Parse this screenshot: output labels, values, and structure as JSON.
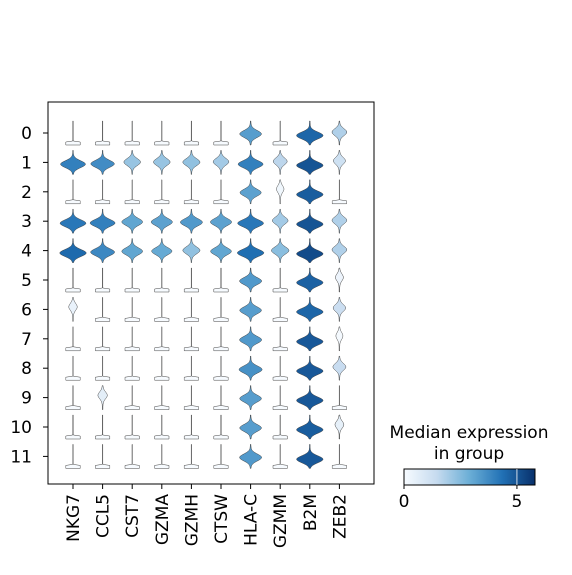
{
  "chart_data": {
    "type": "stacked-violin",
    "rows": [
      "0",
      "1",
      "2",
      "3",
      "4",
      "5",
      "6",
      "7",
      "8",
      "9",
      "10",
      "11"
    ],
    "genes": [
      "NKG7",
      "CCL5",
      "CST7",
      "GZMA",
      "GZMH",
      "CTSW",
      "HLA-C",
      "GZMM",
      "B2M",
      "ZEB2"
    ],
    "median_expression": [
      [
        0.0,
        0.0,
        0.0,
        0.0,
        0.0,
        0.0,
        3.3,
        0.0,
        4.6,
        1.8
      ],
      [
        4.0,
        3.7,
        2.2,
        2.2,
        2.3,
        2.0,
        4.0,
        1.6,
        5.0,
        1.2
      ],
      [
        0.0,
        0.0,
        0.0,
        0.0,
        0.0,
        0.0,
        3.2,
        0.2,
        4.8,
        0.0
      ],
      [
        4.2,
        4.0,
        3.1,
        3.2,
        3.4,
        3.2,
        4.2,
        2.0,
        5.0,
        1.8
      ],
      [
        4.5,
        3.8,
        3.1,
        3.0,
        2.3,
        3.1,
        4.4,
        2.4,
        5.2,
        1.8
      ],
      [
        0.0,
        0.0,
        0.0,
        0.0,
        0.0,
        0.0,
        3.4,
        0.0,
        4.7,
        0.3
      ],
      [
        0.4,
        0.0,
        0.0,
        0.0,
        0.0,
        0.0,
        3.3,
        0.0,
        4.6,
        1.3
      ],
      [
        0.0,
        0.0,
        0.0,
        0.0,
        0.0,
        0.0,
        3.4,
        0.0,
        4.9,
        0.1
      ],
      [
        0.0,
        0.0,
        0.0,
        0.0,
        0.0,
        0.0,
        3.6,
        0.0,
        4.9,
        1.4
      ],
      [
        0.0,
        0.6,
        0.0,
        0.0,
        0.0,
        0.0,
        3.3,
        0.0,
        4.9,
        0.0
      ],
      [
        0.0,
        0.0,
        0.0,
        0.0,
        0.0,
        0.0,
        3.3,
        0.0,
        4.8,
        0.5
      ],
      [
        0.0,
        0.0,
        0.0,
        0.0,
        0.0,
        0.0,
        3.4,
        0.0,
        4.9,
        0.0
      ]
    ],
    "colorbar": {
      "title_line1": "Median expression",
      "title_line2": "in group",
      "ticks": [
        "0",
        "5"
      ],
      "range": [
        0,
        5.8
      ],
      "colormap": [
        "#f7fbff",
        "#c6dbef",
        "#6baed6",
        "#2171b5",
        "#08306b"
      ]
    },
    "grid": false,
    "legend": "right"
  }
}
